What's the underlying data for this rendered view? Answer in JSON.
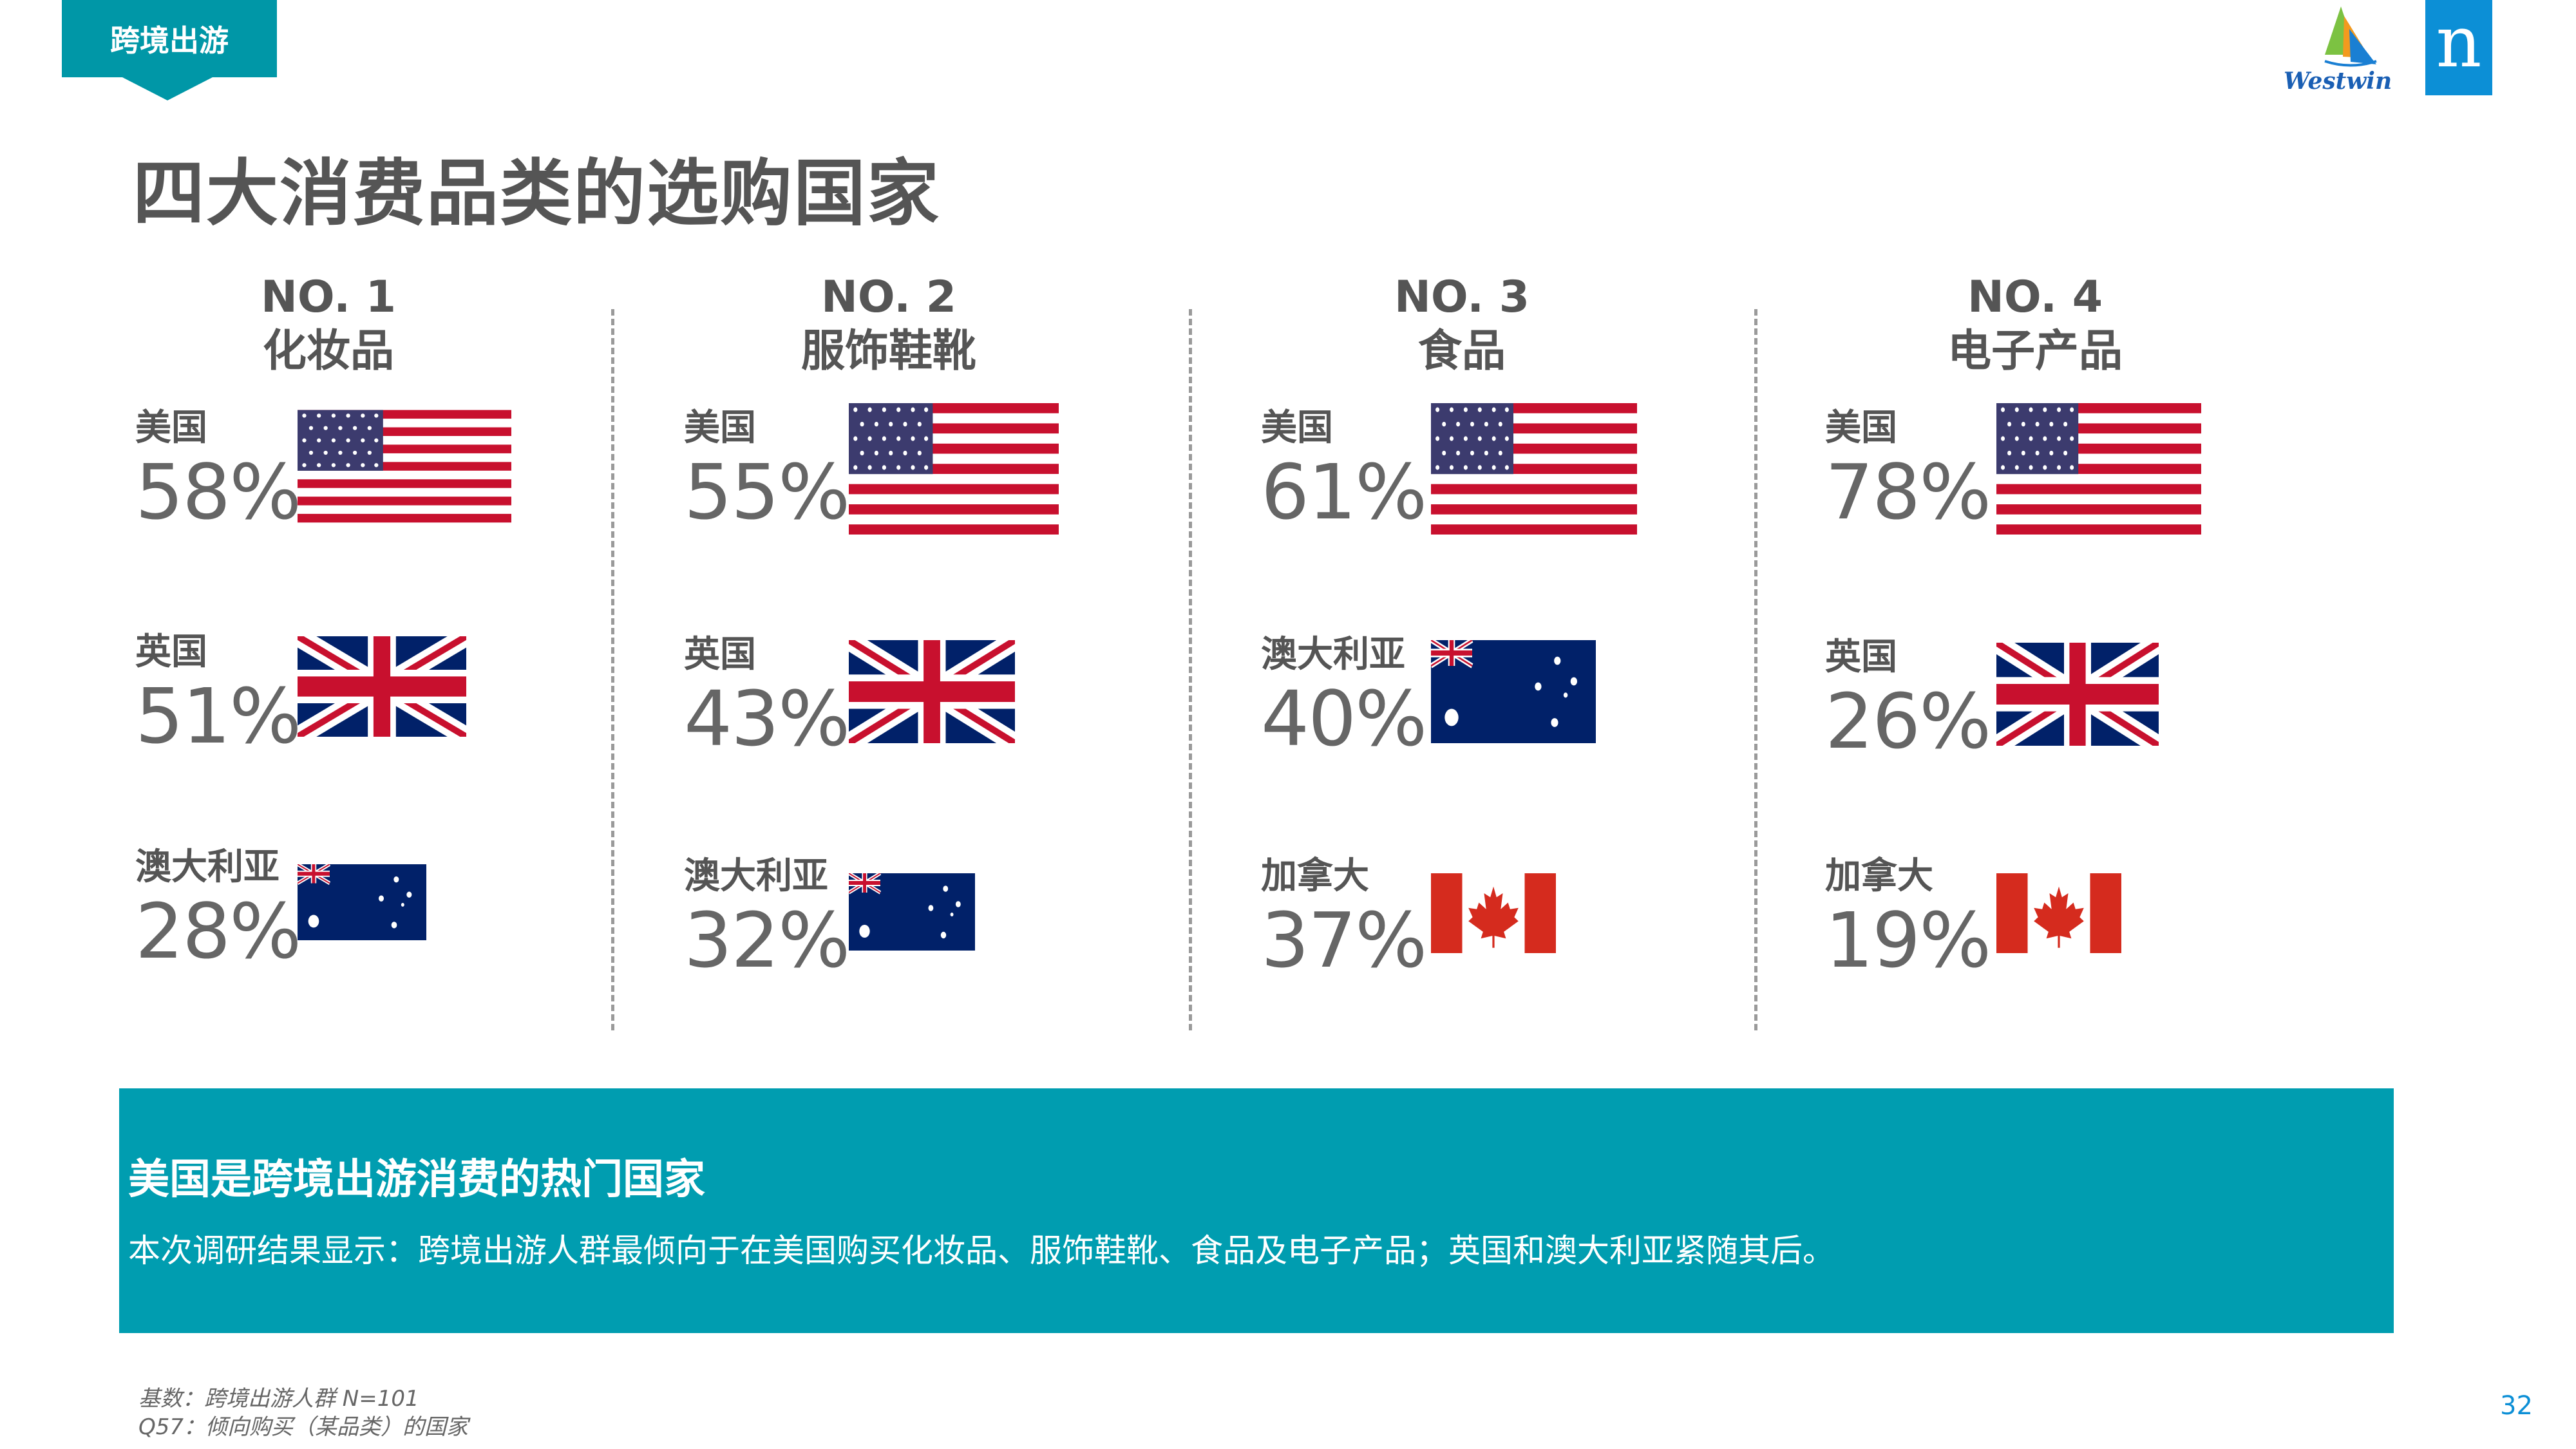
{
  "tag": "跨境出游",
  "logo": {
    "westwin": "Westwin",
    "n": "n"
  },
  "title": "四大消费品类的选购国家",
  "columns": [
    {
      "no": "NO. 1",
      "category": "化妆品",
      "items": [
        {
          "country": "美国",
          "pct": "58%",
          "flag": "us"
        },
        {
          "country": "英国",
          "pct": "51%",
          "flag": "uk"
        },
        {
          "country": "澳大利亚",
          "pct": "28%",
          "flag": "au"
        }
      ]
    },
    {
      "no": "NO. 2",
      "category": "服饰鞋靴",
      "items": [
        {
          "country": "美国",
          "pct": "55%",
          "flag": "us"
        },
        {
          "country": "英国",
          "pct": "43%",
          "flag": "uk"
        },
        {
          "country": "澳大利亚",
          "pct": "32%",
          "flag": "au"
        }
      ]
    },
    {
      "no": "NO. 3",
      "category": "食品",
      "items": [
        {
          "country": "美国",
          "pct": "61%",
          "flag": "us"
        },
        {
          "country": "澳大利亚",
          "pct": "40%",
          "flag": "au"
        },
        {
          "country": "加拿大",
          "pct": "37%",
          "flag": "ca"
        }
      ]
    },
    {
      "no": "NO. 4",
      "category": "电子产品",
      "items": [
        {
          "country": "美国",
          "pct": "78%",
          "flag": "us"
        },
        {
          "country": "英国",
          "pct": "26%",
          "flag": "uk"
        },
        {
          "country": "加拿大",
          "pct": "19%",
          "flag": "ca"
        }
      ]
    }
  ],
  "banner": {
    "heading": "美国是跨境出游消费的热门国家",
    "text": "本次调研结果显示：跨境出游人群最倾向于在美国购买化妆品、服饰鞋靴、食品及电子产品；英国和澳大利亚紧随其后。"
  },
  "footnote": {
    "line1": "基数：跨境出游人群 N=101",
    "line2": "Q57：倾向购买（某品类）的国家"
  },
  "page_number": "32",
  "colors": {
    "teal": "#009db0",
    "tag": "#0097a7",
    "brand_blue": "#0c8fd6",
    "text_gray": "#555555"
  }
}
